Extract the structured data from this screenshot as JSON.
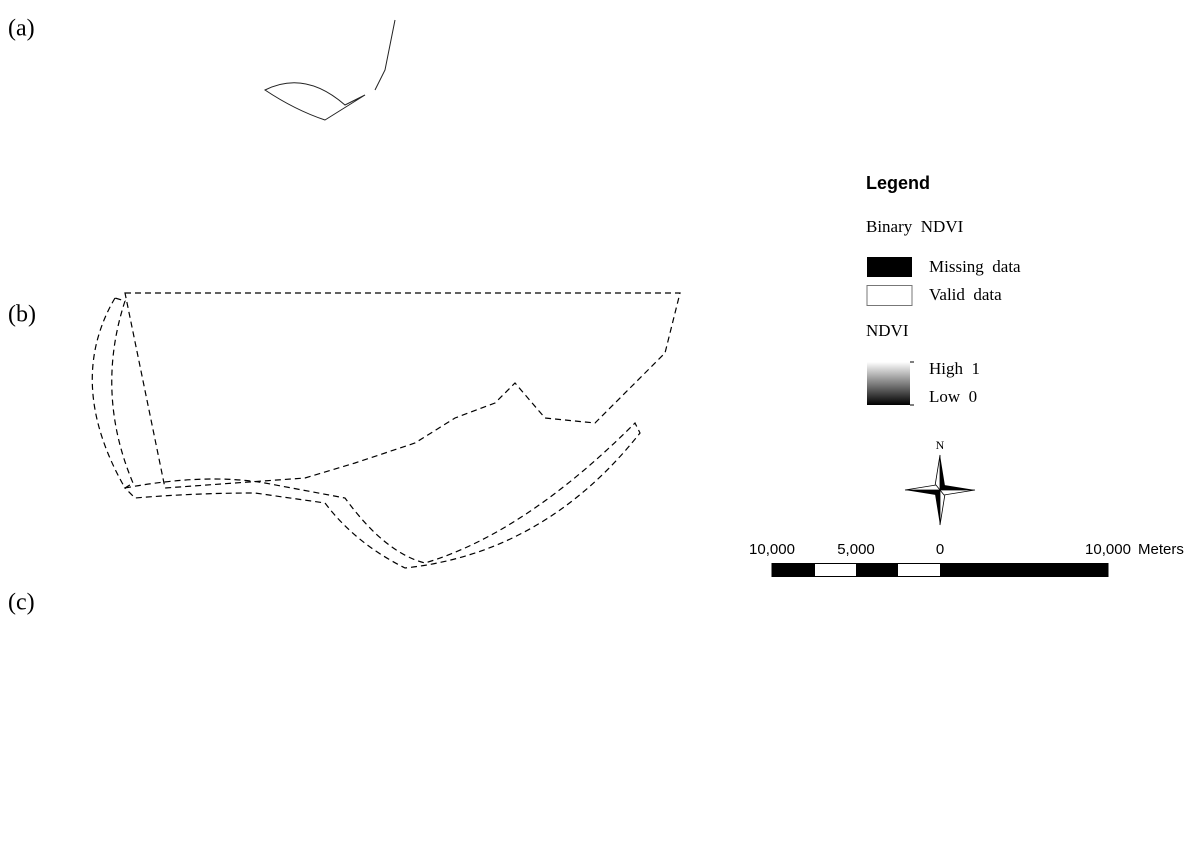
{
  "panels": [
    {
      "label": "(a)"
    },
    {
      "label": "(b)"
    },
    {
      "label": "(c)"
    }
  ],
  "legend": {
    "title": "Legend",
    "binary_title": "Binary  NDVI",
    "items": [
      "Missing  data",
      "Valid  data"
    ],
    "ndvi_title": "NDVI",
    "high": "High  1",
    "low": "Low  0"
  },
  "north_arrow": {
    "label": "N"
  },
  "scale_bar": {
    "labels": [
      "10,000",
      "5,000",
      "0",
      "10,000"
    ],
    "unit": "Meters"
  }
}
